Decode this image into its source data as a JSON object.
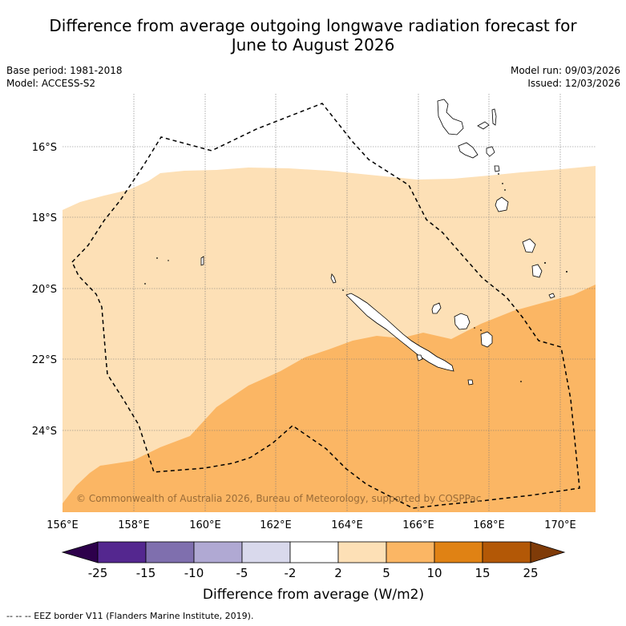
{
  "title": {
    "line1": "Difference from average outgoing longwave radiation forecast for",
    "line2": "June to August 2026"
  },
  "meta": {
    "base_period": "Base period: 1981-2018",
    "model": "Model: ACCESS-S2",
    "model_run": "Model run: 09/03/2026",
    "issued": "Issued: 12/03/2026"
  },
  "map": {
    "lat_labels": [
      "16°S",
      "18°S",
      "20°S",
      "22°S",
      "24°S"
    ],
    "lon_labels": [
      "156°E",
      "158°E",
      "160°E",
      "162°E",
      "164°E",
      "166°E",
      "168°E",
      "170°E"
    ],
    "copyright": "© Commonwealth of Australia 2026, Bureau of Meteorology, supported by COSPPac",
    "region_colors": {
      "light_orange": "#fde0b6",
      "medium_orange": "#fbb664",
      "land_fill": "#ffffff"
    }
  },
  "colorbar": {
    "ticks": [
      "-25",
      "-15",
      "-10",
      "-5",
      "-2",
      "2",
      "5",
      "10",
      "15",
      "25"
    ],
    "colors": [
      "#54278f",
      "#7f6fae",
      "#b0a9d3",
      "#d9d9ec",
      "#ffffff",
      "#fde0b6",
      "#fbb664",
      "#e08214",
      "#b35806"
    ],
    "low_extend_color": "#2d004b",
    "high_extend_color": "#7f3b08",
    "label": "Difference from average (W/m2)"
  },
  "footer": {
    "text": "--  --  -- EEZ border V11 (Flanders Marine Institute, 2019)."
  }
}
